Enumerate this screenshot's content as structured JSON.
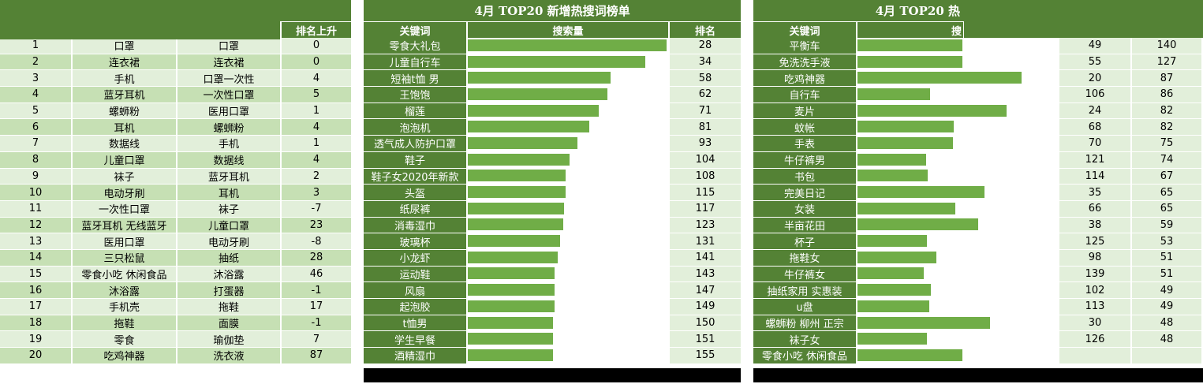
{
  "panel1": {
    "title": "",
    "headers": [
      "",
      "",
      "",
      "排名上升"
    ],
    "rows": [
      {
        "rank": "1",
        "a": "口罩",
        "b": "口罩",
        "change": "0"
      },
      {
        "rank": "2",
        "a": "连衣裙",
        "b": "连衣裙",
        "change": "0"
      },
      {
        "rank": "3",
        "a": "手机",
        "b": "口罩一次性",
        "change": "4"
      },
      {
        "rank": "4",
        "a": "蓝牙耳机",
        "b": "一次性口罩",
        "change": "5"
      },
      {
        "rank": "5",
        "a": "螺蛳粉",
        "b": "医用口罩",
        "change": "1"
      },
      {
        "rank": "6",
        "a": "耳机",
        "b": "螺蛳粉",
        "change": "4"
      },
      {
        "rank": "7",
        "a": "数据线",
        "b": "手机",
        "change": "1"
      },
      {
        "rank": "8",
        "a": "儿童口罩",
        "b": "数据线",
        "change": "4"
      },
      {
        "rank": "9",
        "a": "袜子",
        "b": "蓝牙耳机",
        "change": "2"
      },
      {
        "rank": "10",
        "a": "电动牙刷",
        "b": "耳机",
        "change": "3"
      },
      {
        "rank": "11",
        "a": "一次性口罩",
        "b": "袜子",
        "change": "-7"
      },
      {
        "rank": "12",
        "a": "蓝牙耳机 无线蓝牙",
        "b": "儿童口罩",
        "change": "23"
      },
      {
        "rank": "13",
        "a": "医用口罩",
        "b": "电动牙刷",
        "change": "-8"
      },
      {
        "rank": "14",
        "a": "三只松鼠",
        "b": "抽纸",
        "change": "28"
      },
      {
        "rank": "15",
        "a": "零食小吃 休闲食品",
        "b": "沐浴露",
        "change": "46"
      },
      {
        "rank": "16",
        "a": "沐浴露",
        "b": "打蛋器",
        "change": "-1"
      },
      {
        "rank": "17",
        "a": "手机壳",
        "b": "拖鞋",
        "change": "17"
      },
      {
        "rank": "18",
        "a": "拖鞋",
        "b": "面膜",
        "change": "-1"
      },
      {
        "rank": "19",
        "a": "零食",
        "b": "瑜伽垫",
        "change": "7"
      },
      {
        "rank": "20",
        "a": "吃鸡神器",
        "b": "洗衣液",
        "change": "87"
      }
    ]
  },
  "chart_data": [
    {
      "type": "bar",
      "title": "4月 TOP20 新增热搜词榜单",
      "headers": [
        "关键词",
        "搜索量",
        "排名"
      ],
      "categories": [
        "零食大礼包",
        "儿童自行车",
        "短袖t恤 男",
        "王饱饱",
        "榴莲",
        "泡泡机",
        "透气成人防护口罩",
        "鞋子",
        "鞋子女2020年新款",
        "头盔",
        "纸尿裤",
        "消毒湿巾",
        "玻璃杯",
        "小龙虾",
        "运动鞋",
        "风扇",
        "起泡胶",
        "t恤男",
        "学生早餐",
        "酒精湿巾"
      ],
      "values": [
        1.0,
        0.895,
        0.72,
        0.705,
        0.66,
        0.615,
        0.555,
        0.515,
        0.495,
        0.495,
        0.49,
        0.485,
        0.47,
        0.455,
        0.44,
        0.44,
        0.44,
        0.435,
        0.435,
        0.435
      ],
      "ranks": [
        "28",
        "34",
        "58",
        "62",
        "71",
        "81",
        "93",
        "104",
        "108",
        "115",
        "117",
        "123",
        "131",
        "141",
        "143",
        "147",
        "149",
        "150",
        "151",
        "155"
      ]
    },
    {
      "type": "bar",
      "title": "4月 TOP20 热",
      "headers": [
        "关键词",
        "搜"
      ],
      "categories": [
        "平衡车",
        "免洗洗手液",
        "吃鸡神器",
        "自行车",
        "麦片",
        "蚊帐",
        "手表",
        "牛仔裤男",
        "书包",
        "完美日记",
        "女装",
        "半亩花田",
        "杯子",
        "拖鞋女",
        "牛仔裤女",
        "抽纸家用 实惠装",
        "u盘",
        "螺蛳粉 柳州 正宗",
        "袜子女",
        "零食小吃 休闲食品"
      ],
      "values": [
        0.53,
        0.53,
        0.825,
        0.37,
        0.75,
        0.49,
        0.485,
        0.35,
        0.36,
        0.64,
        0.495,
        0.61,
        0.355,
        0.4,
        0.34,
        0.375,
        0.365,
        0.67,
        0.355,
        0.53
      ],
      "col_a": [
        "49",
        "55",
        "20",
        "106",
        "24",
        "68",
        "70",
        "121",
        "114",
        "35",
        "66",
        "38",
        "125",
        "98",
        "139",
        "102",
        "113",
        "30",
        "126",
        ""
      ],
      "col_b": [
        "140",
        "127",
        "87",
        "86",
        "82",
        "82",
        "75",
        "74",
        "67",
        "65",
        "65",
        "59",
        "53",
        "51",
        "51",
        "49",
        "49",
        "48",
        "48",
        ""
      ]
    }
  ]
}
